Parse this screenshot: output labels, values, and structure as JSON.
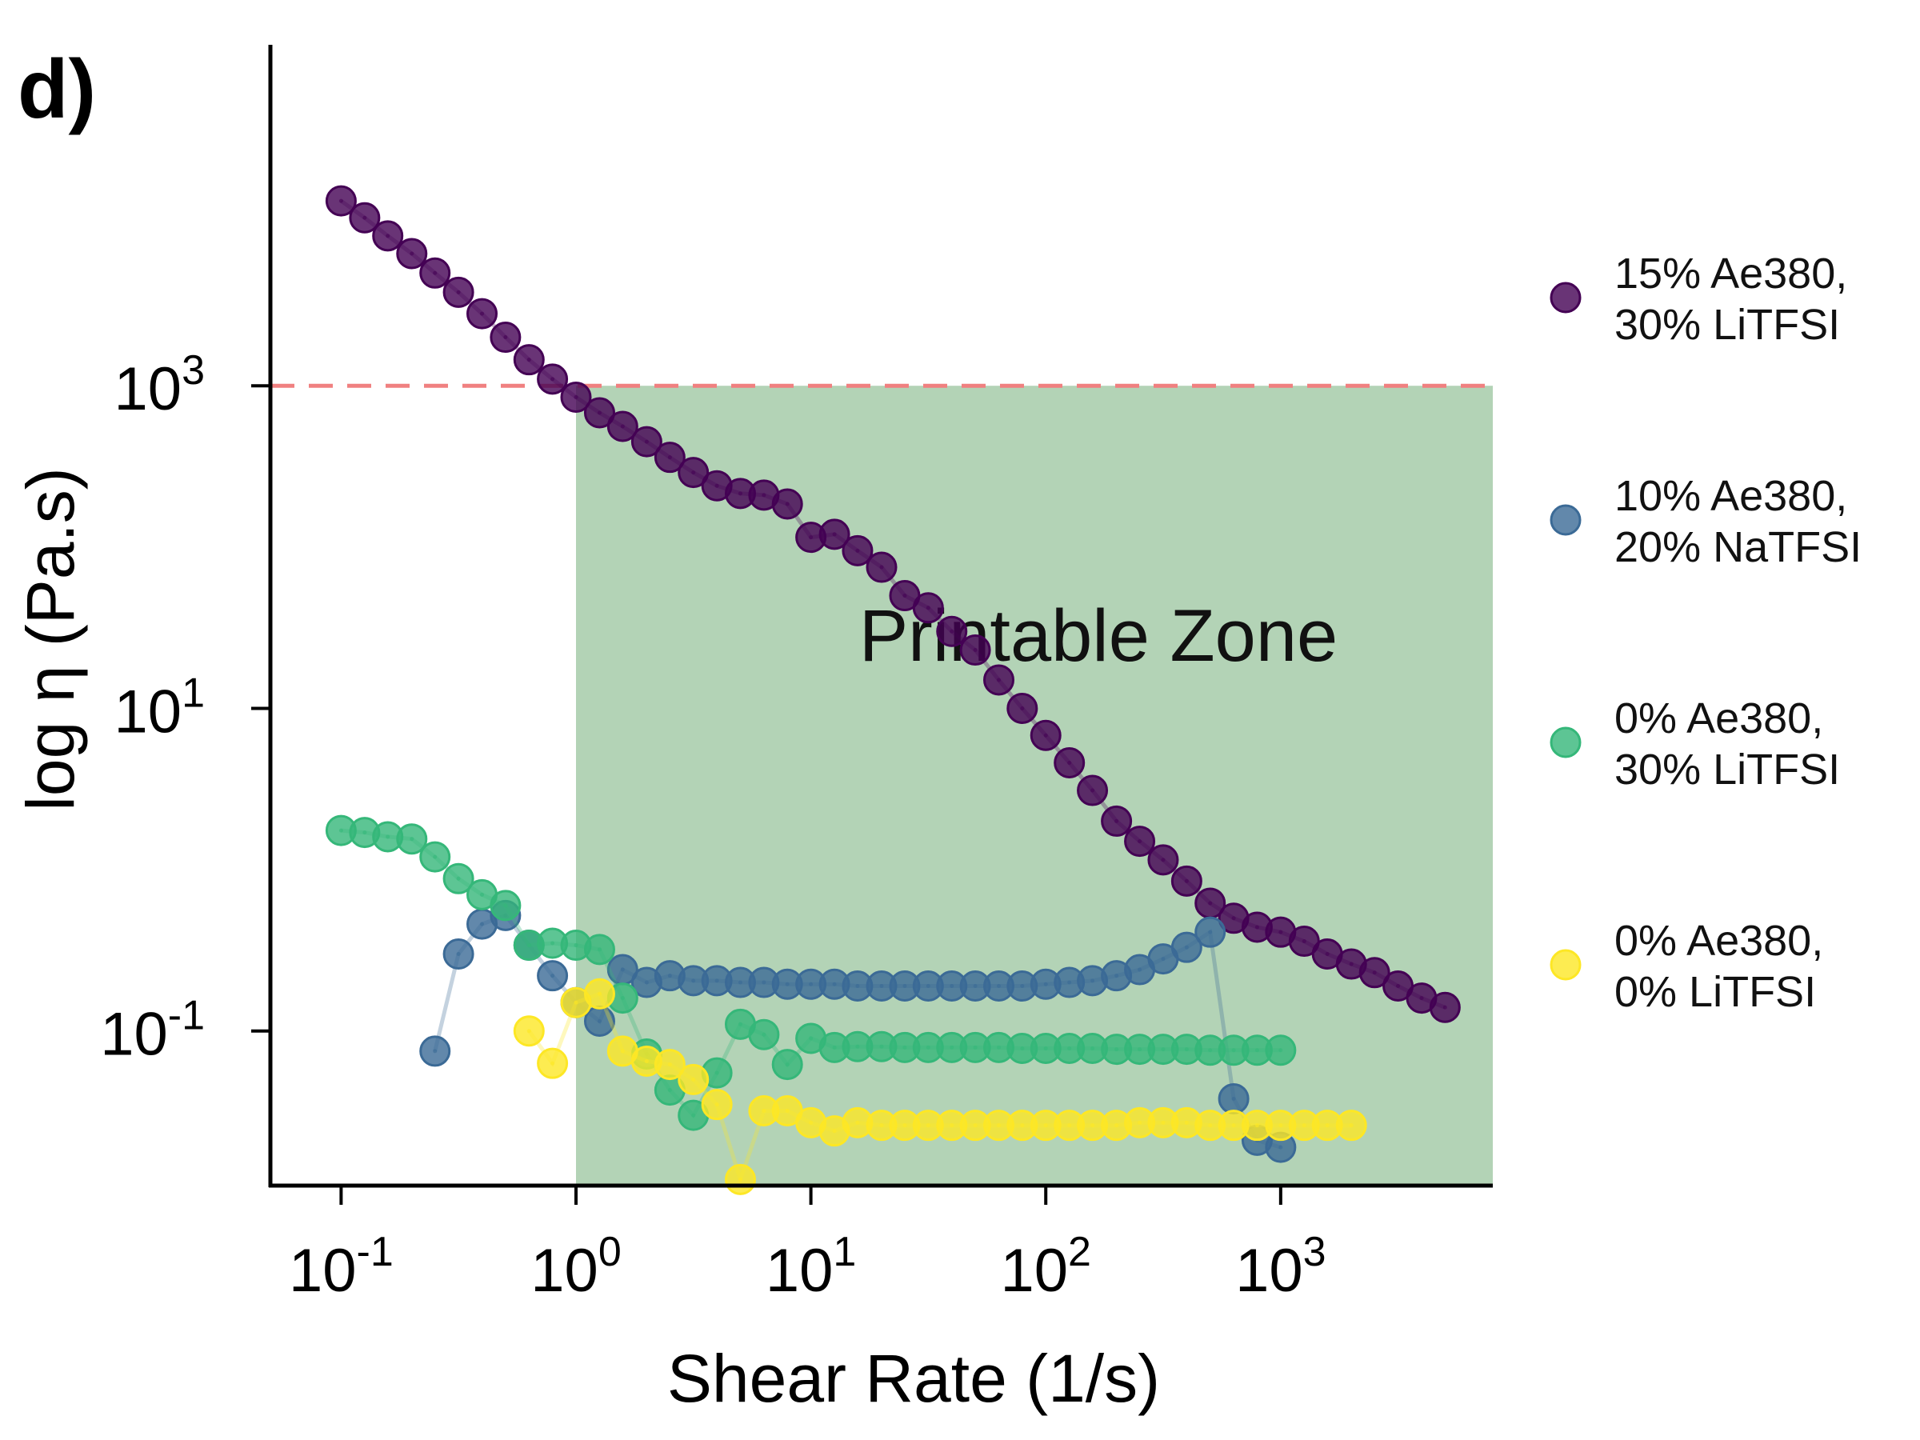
{
  "panel_label": "d)",
  "chart_data": {
    "type": "scatter",
    "xlabel": "Shear Rate (1/s)",
    "ylabel": "log η (Pa.s)",
    "xscale": "log",
    "yscale": "log",
    "xlim": [
      0.05,
      8000
    ],
    "ylim": [
      0.011,
      130000
    ],
    "x_ticks": [
      {
        "value": 0.1,
        "base": "10",
        "exp": "-1"
      },
      {
        "value": 1,
        "base": "10",
        "exp": "0"
      },
      {
        "value": 10,
        "base": "10",
        "exp": "1"
      },
      {
        "value": 100,
        "base": "10",
        "exp": "2"
      },
      {
        "value": 1000,
        "base": "10",
        "exp": "3"
      }
    ],
    "y_ticks": [
      {
        "value": 0.1,
        "base": "10",
        "exp": "-1"
      },
      {
        "value": 10,
        "base": "10",
        "exp": "1"
      },
      {
        "value": 1000,
        "base": "10",
        "exp": "3"
      }
    ],
    "threshold": {
      "y": 1000,
      "color": "#f08080"
    },
    "printable_zone": {
      "x_from": 1,
      "x_to": 8000,
      "y_from": 0.011,
      "y_to": 1000,
      "color": "#b3d3b6",
      "label": "Printable Zone"
    },
    "legend_position": "right",
    "series": [
      {
        "name": "15% Ae380, 30% LiTFSI",
        "color": "#440154",
        "x": [
          0.1,
          0.126,
          0.158,
          0.2,
          0.251,
          0.316,
          0.398,
          0.501,
          0.631,
          0.794,
          1.0,
          1.26,
          1.58,
          2.0,
          2.51,
          3.16,
          3.98,
          5.01,
          6.31,
          7.94,
          10.0,
          12.6,
          15.8,
          20.0,
          25.1,
          31.6,
          39.8,
          50.1,
          63.1,
          79.4,
          100,
          126,
          158,
          200,
          251,
          316,
          398,
          501,
          631,
          794,
          1000,
          1260,
          1580,
          2000,
          2510,
          3160,
          3980,
          5010
        ],
        "y": [
          14000,
          11000,
          8500,
          6600,
          5000,
          3800,
          2800,
          2000,
          1450,
          1100,
          850,
          680,
          560,
          450,
          360,
          290,
          240,
          215,
          210,
          185,
          115,
          120,
          95,
          75,
          50,
          42,
          30,
          23,
          15,
          10,
          6.8,
          4.6,
          3.1,
          2.0,
          1.5,
          1.15,
          0.85,
          0.62,
          0.5,
          0.44,
          0.41,
          0.36,
          0.3,
          0.26,
          0.23,
          0.19,
          0.16,
          0.14
        ]
      },
      {
        "name": "10% Ae380, 20% NaTFSI",
        "color": "#3b6a96",
        "x": [
          0.251,
          0.316,
          0.398,
          0.501,
          0.631,
          0.794,
          1.0,
          1.26,
          1.58,
          2.0,
          2.51,
          3.16,
          3.98,
          5.01,
          6.31,
          7.94,
          10.0,
          12.6,
          15.8,
          20.0,
          25.1,
          31.6,
          39.8,
          50.1,
          63.1,
          79.4,
          100,
          126,
          158,
          200,
          251,
          316,
          398,
          501,
          631,
          794,
          1000
        ],
        "y": [
          0.075,
          0.3,
          0.46,
          0.52,
          0.34,
          0.22,
          0.15,
          0.115,
          0.24,
          0.2,
          0.22,
          0.205,
          0.205,
          0.2,
          0.2,
          0.195,
          0.195,
          0.195,
          0.19,
          0.19,
          0.19,
          0.19,
          0.19,
          0.19,
          0.19,
          0.19,
          0.195,
          0.2,
          0.205,
          0.22,
          0.24,
          0.28,
          0.33,
          0.41,
          0.038,
          0.021,
          0.019
        ]
      },
      {
        "name": "0% Ae380, 30% LiTFSI",
        "color": "#35b779",
        "x": [
          0.1,
          0.126,
          0.158,
          0.2,
          0.251,
          0.316,
          0.398,
          0.501,
          0.631,
          0.794,
          1.0,
          1.26,
          1.58,
          2.0,
          2.51,
          3.16,
          3.98,
          5.01,
          6.31,
          7.94,
          10.0,
          12.6,
          15.8,
          20.0,
          25.1,
          31.6,
          39.8,
          50.1,
          63.1,
          79.4,
          100,
          126,
          158,
          200,
          251,
          316,
          398,
          501,
          631,
          794,
          1000
        ],
        "y": [
          1.75,
          1.7,
          1.6,
          1.55,
          1.2,
          0.88,
          0.7,
          0.6,
          0.34,
          0.35,
          0.34,
          0.32,
          0.16,
          0.072,
          0.043,
          0.03,
          0.055,
          0.11,
          0.095,
          0.062,
          0.09,
          0.079,
          0.08,
          0.08,
          0.079,
          0.079,
          0.079,
          0.079,
          0.079,
          0.078,
          0.078,
          0.078,
          0.078,
          0.077,
          0.077,
          0.077,
          0.077,
          0.076,
          0.076,
          0.076,
          0.076
        ]
      },
      {
        "name": "0% Ae380, 0% LiTFSI",
        "color": "#fde725",
        "x": [
          0.631,
          0.794,
          1.0,
          1.26,
          1.58,
          2.0,
          2.51,
          3.16,
          3.98,
          5.01,
          6.31,
          7.94,
          10.0,
          12.6,
          15.8,
          20.0,
          25.1,
          31.6,
          39.8,
          50.1,
          63.1,
          79.4,
          100,
          126,
          158,
          200,
          251,
          316,
          398,
          501,
          631,
          794,
          1000,
          1260,
          1580,
          2000
        ],
        "y": [
          0.1,
          0.063,
          0.15,
          0.17,
          0.075,
          0.065,
          0.062,
          0.05,
          0.035,
          0.012,
          0.032,
          0.032,
          0.027,
          0.024,
          0.027,
          0.026,
          0.026,
          0.026,
          0.026,
          0.026,
          0.026,
          0.026,
          0.026,
          0.026,
          0.026,
          0.026,
          0.027,
          0.027,
          0.027,
          0.026,
          0.026,
          0.026,
          0.026,
          0.026,
          0.026,
          0.026
        ]
      }
    ],
    "legend": [
      {
        "line1": "15% Ae380,",
        "line2": "30% LiTFSI"
      },
      {
        "line1": "10% Ae380,",
        "line2": "20% NaTFSI"
      },
      {
        "line1": "0% Ae380,",
        "line2": "30% LiTFSI"
      },
      {
        "line1": "0% Ae380,",
        "line2": "0% LiTFSI"
      }
    ]
  }
}
